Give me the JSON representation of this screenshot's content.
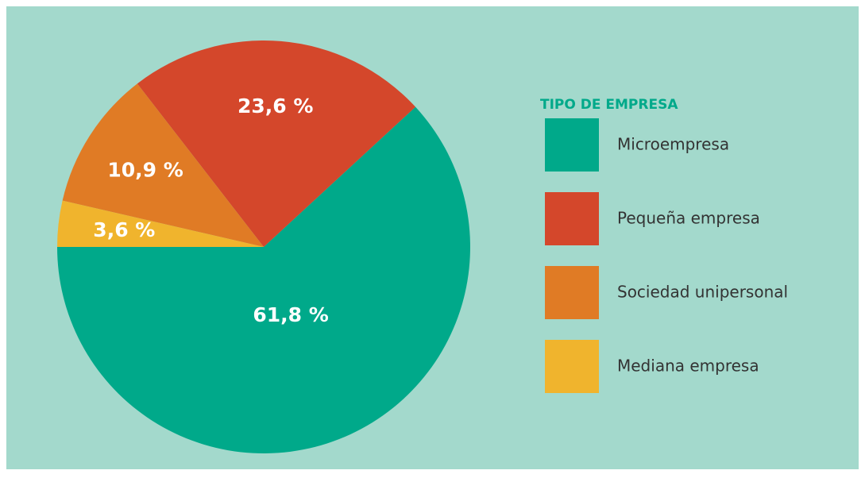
{
  "chart_data": {
    "type": "pie",
    "legend_title": "TIPO DE EMPRESA",
    "categories": [
      "Microempresa",
      "Pequeña empresa",
      "Sociedad unipersonal",
      "Mediana empresa"
    ],
    "values": [
      61.8,
      23.6,
      10.9,
      3.6
    ],
    "value_labels": [
      "61,8 %",
      "23,6 %",
      "10,9 %",
      "3,6 %"
    ],
    "colors": [
      "#00a98a",
      "#d4472b",
      "#e07b25",
      "#f0b42d"
    ],
    "legend": "right"
  }
}
